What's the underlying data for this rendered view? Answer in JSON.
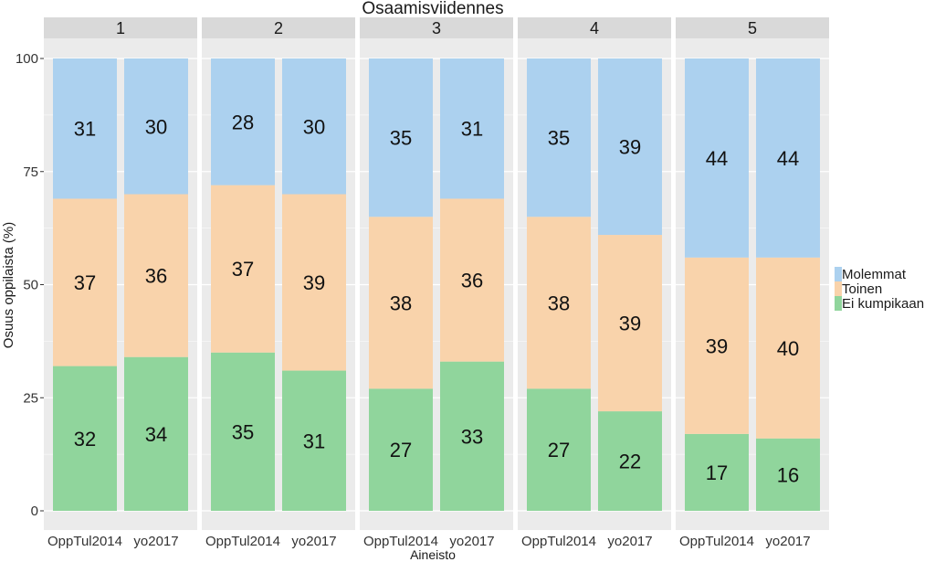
{
  "chart_data": {
    "type": "bar",
    "stacked": true,
    "faceted": true,
    "title": "Osaamisviidennes",
    "xlabel": "Aineisto",
    "ylabel": "Osuus oppilaista (%)",
    "ylim": [
      0,
      100
    ],
    "yticks": [
      "0",
      "25",
      "50",
      "75",
      "100"
    ],
    "categories": [
      "OppTul2014",
      "yo2017"
    ],
    "facets": [
      "1",
      "2",
      "3",
      "4",
      "5"
    ],
    "legend": {
      "placement": "right",
      "entries": [
        "Molemmat",
        "Toinen",
        "Ei kumpikaan"
      ]
    },
    "colors": {
      "Molemmat": "#acd1ef",
      "Toinen": "#f9d3ab",
      "Ei kumpikaan": "#90d59c"
    },
    "series": [
      {
        "name": "Ei kumpikaan",
        "values": [
          [
            32,
            34
          ],
          [
            35,
            31
          ],
          [
            27,
            33
          ],
          [
            27,
            22
          ],
          [
            17,
            16
          ]
        ]
      },
      {
        "name": "Toinen",
        "values": [
          [
            37,
            36
          ],
          [
            37,
            39
          ],
          [
            38,
            36
          ],
          [
            38,
            39
          ],
          [
            39,
            40
          ]
        ]
      },
      {
        "name": "Molemmat",
        "values": [
          [
            31,
            30
          ],
          [
            28,
            30
          ],
          [
            35,
            31
          ],
          [
            35,
            39
          ],
          [
            44,
            44
          ]
        ]
      }
    ]
  }
}
